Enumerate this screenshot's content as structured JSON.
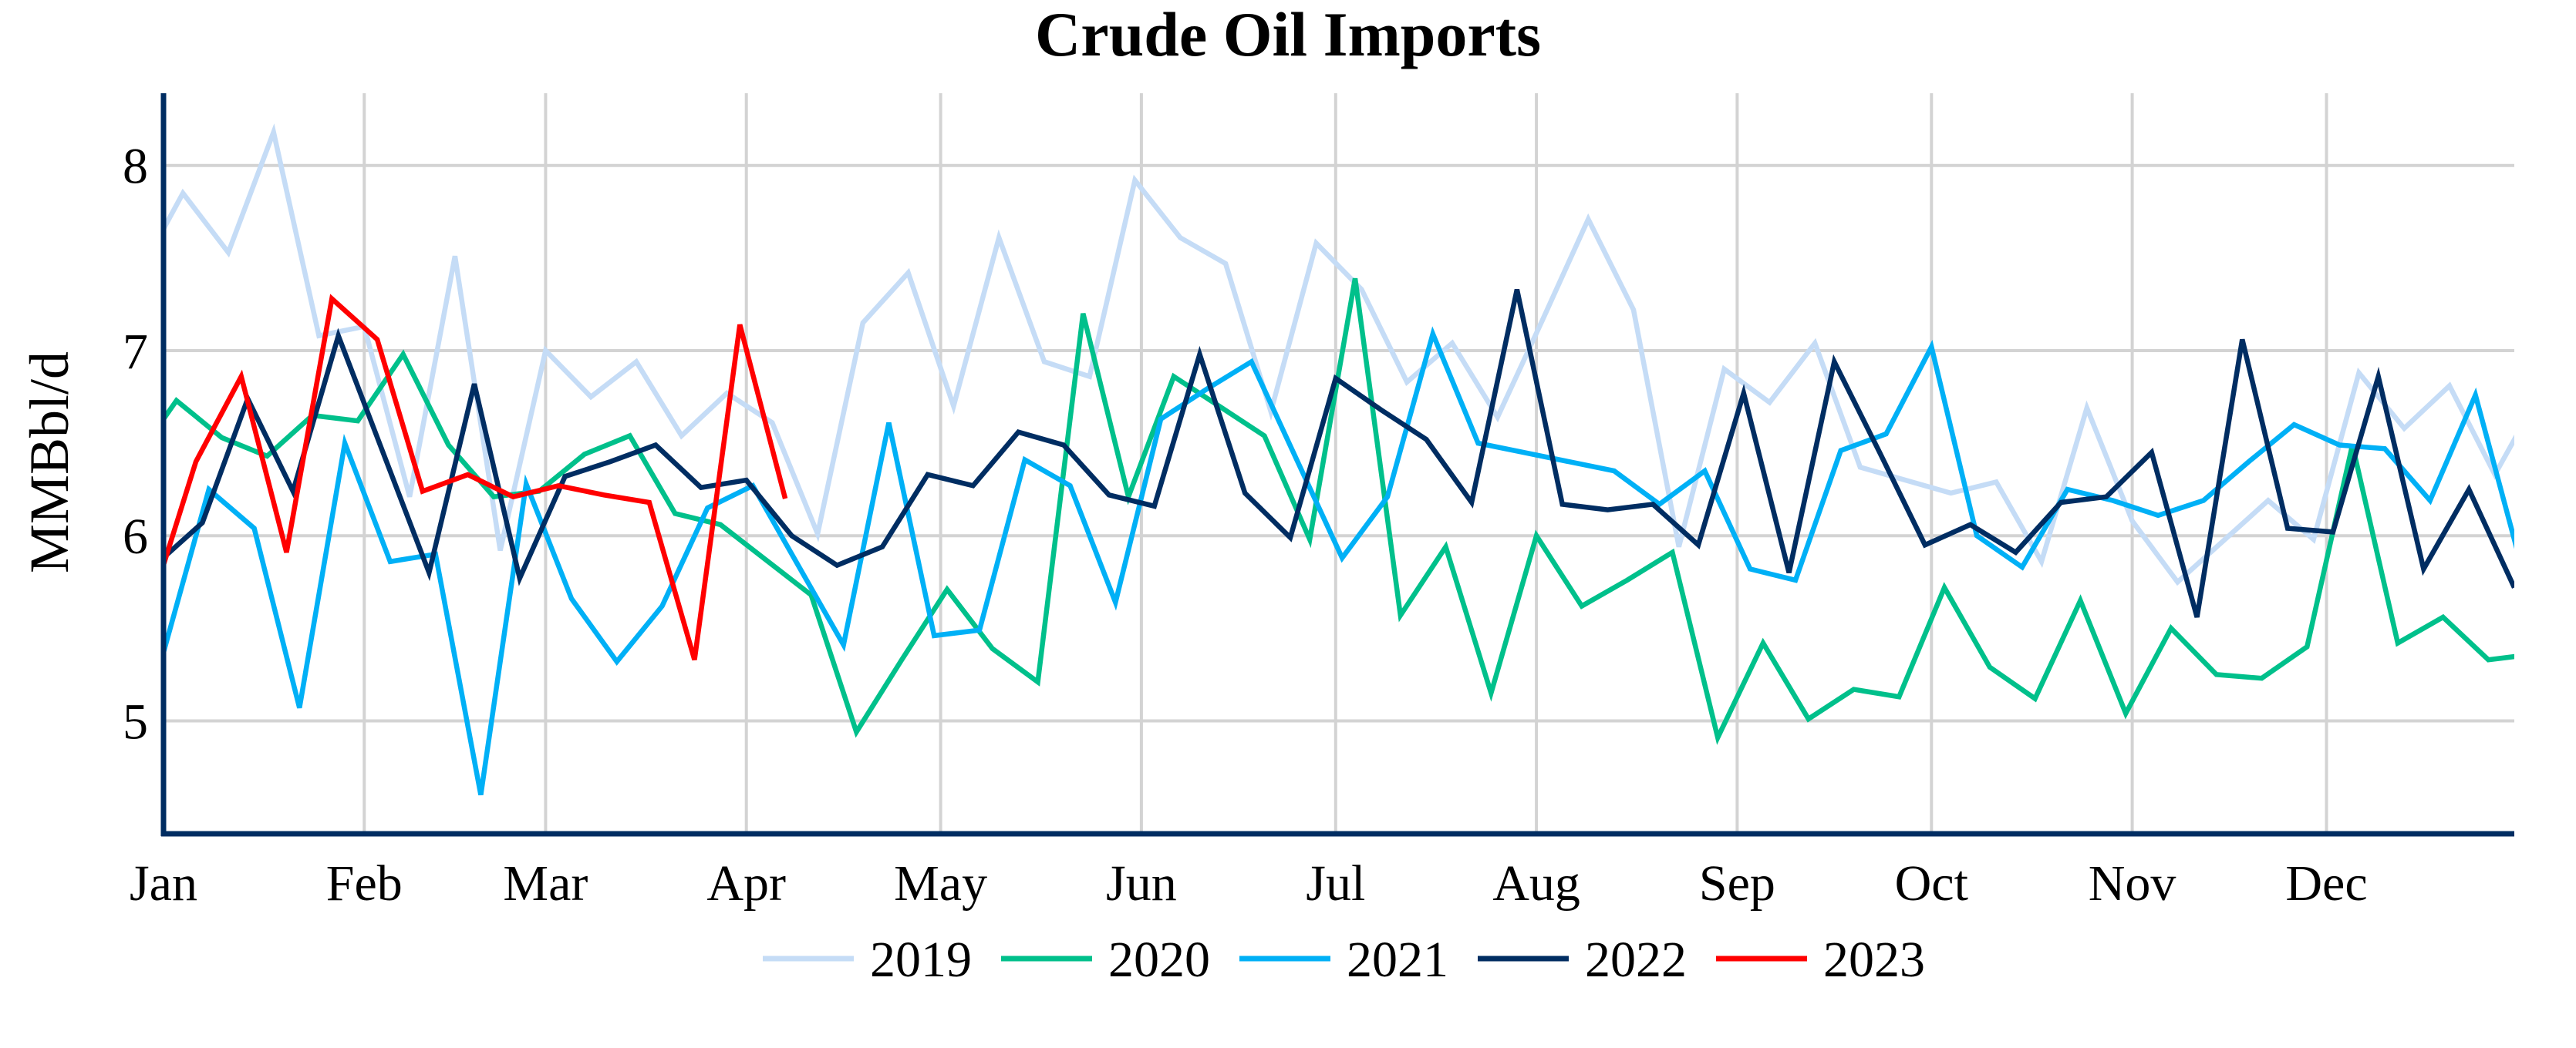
{
  "chart_data": {
    "type": "line",
    "title": "Crude Oil Imports",
    "xlabel": "",
    "ylabel": "MMBbl/d",
    "xlim": [
      "01-01",
      "12-30"
    ],
    "ylim": [
      4.39,
      8.39
    ],
    "yticks": [
      {
        "value": 5,
        "label": "5"
      },
      {
        "value": 6,
        "label": "6"
      },
      {
        "value": 7,
        "label": "7"
      },
      {
        "value": 8,
        "label": "8"
      }
    ],
    "xticks": [
      {
        "date": "01-01",
        "label": "Jan"
      },
      {
        "date": "02-01",
        "label": "Feb"
      },
      {
        "date": "03-01",
        "label": "Mar"
      },
      {
        "date": "04-01",
        "label": "Apr"
      },
      {
        "date": "05-01",
        "label": "May"
      },
      {
        "date": "06-01",
        "label": "Jun"
      },
      {
        "date": "07-01",
        "label": "Jul"
      },
      {
        "date": "08-01",
        "label": "Aug"
      },
      {
        "date": "09-01",
        "label": "Sep"
      },
      {
        "date": "10-01",
        "label": "Oct"
      },
      {
        "date": "11-01",
        "label": "Nov"
      },
      {
        "date": "12-01",
        "label": "Dec"
      }
    ],
    "grid": true,
    "legend_position": "bottom",
    "axis_color": "#002d62",
    "grid_color": "#d3d3d3",
    "series": [
      {
        "name": "2019",
        "color": "#c5dcf6",
        "dates": [
          "2018-12-28",
          "2019-01-04",
          "2019-01-11",
          "2019-01-18",
          "2019-01-25",
          "2019-02-01",
          "2019-02-08",
          "2019-02-15",
          "2019-02-22",
          "2019-03-01",
          "2019-03-08",
          "2019-03-15",
          "2019-03-22",
          "2019-03-29",
          "2019-04-05",
          "2019-04-12",
          "2019-04-19",
          "2019-04-26",
          "2019-05-03",
          "2019-05-10",
          "2019-05-17",
          "2019-05-24",
          "2019-05-31",
          "2019-06-07",
          "2019-06-14",
          "2019-06-21",
          "2019-06-28",
          "2019-07-05",
          "2019-07-12",
          "2019-07-19",
          "2019-07-26",
          "2019-08-02",
          "2019-08-09",
          "2019-08-16",
          "2019-08-23",
          "2019-08-30",
          "2019-09-06",
          "2019-09-13",
          "2019-09-20",
          "2019-09-27",
          "2019-10-04",
          "2019-10-11",
          "2019-10-18",
          "2019-10-25",
          "2019-11-01",
          "2019-11-08",
          "2019-11-15",
          "2019-11-22",
          "2019-11-29",
          "2019-12-06",
          "2019-12-13",
          "2019-12-20",
          "2019-12-27",
          "2020-01-03"
        ],
        "values": [
          7.4,
          7.85,
          7.53,
          8.18,
          7.08,
          7.13,
          6.21,
          7.51,
          5.92,
          7.0,
          6.75,
          6.94,
          6.54,
          6.77,
          6.61,
          6.01,
          7.15,
          7.42,
          6.7,
          7.61,
          6.94,
          6.86,
          7.92,
          7.61,
          7.47,
          6.67,
          7.58,
          7.33,
          6.83,
          7.04,
          6.64,
          7.17,
          7.71,
          7.22,
          5.94,
          6.9,
          6.72,
          7.04,
          6.37,
          6.3,
          6.23,
          6.29,
          5.86,
          6.69,
          6.08,
          5.75,
          5.97,
          6.19,
          5.98,
          6.88,
          6.58,
          6.81,
          6.33,
          6.77
        ]
      },
      {
        "name": "2020",
        "color": "#00c08b",
        "dates": [
          "2019-12-27",
          "2020-01-03",
          "2020-01-10",
          "2020-01-17",
          "2020-01-24",
          "2020-01-31",
          "2020-02-07",
          "2020-02-14",
          "2020-02-21",
          "2020-02-28",
          "2020-03-06",
          "2020-03-13",
          "2020-03-20",
          "2020-03-27",
          "2020-04-03",
          "2020-04-10",
          "2020-04-17",
          "2020-04-24",
          "2020-05-01",
          "2020-05-08",
          "2020-05-15",
          "2020-05-22",
          "2020-05-29",
          "2020-06-05",
          "2020-06-12",
          "2020-06-19",
          "2020-06-26",
          "2020-07-03",
          "2020-07-10",
          "2020-07-17",
          "2020-07-24",
          "2020-07-31",
          "2020-08-07",
          "2020-08-14",
          "2020-08-21",
          "2020-08-28",
          "2020-09-04",
          "2020-09-11",
          "2020-09-18",
          "2020-09-25",
          "2020-10-02",
          "2020-10-09",
          "2020-10-16",
          "2020-10-23",
          "2020-10-30",
          "2020-11-06",
          "2020-11-13",
          "2020-11-20",
          "2020-11-27",
          "2020-12-04",
          "2020-12-11",
          "2020-12-18",
          "2020-12-25",
          "2021-01-01"
        ],
        "values": [
          6.38,
          6.73,
          6.53,
          6.43,
          6.65,
          6.62,
          6.98,
          6.49,
          6.21,
          6.24,
          6.44,
          6.54,
          6.12,
          6.06,
          5.87,
          5.68,
          4.94,
          5.33,
          5.71,
          5.39,
          5.21,
          7.2,
          6.21,
          6.86,
          6.7,
          6.54,
          5.98,
          7.39,
          5.57,
          5.94,
          5.15,
          6.0,
          5.62,
          5.76,
          5.91,
          4.91,
          5.42,
          5.01,
          5.17,
          5.13,
          5.72,
          5.29,
          5.12,
          5.65,
          5.04,
          5.5,
          5.25,
          5.23,
          5.4,
          6.49,
          5.42,
          5.56,
          5.33,
          5.36
        ]
      },
      {
        "name": "2021",
        "color": "#00b0f6",
        "dates": [
          "2021-01-01",
          "2021-01-08",
          "2021-01-15",
          "2021-01-22",
          "2021-01-29",
          "2021-02-05",
          "2021-02-12",
          "2021-02-19",
          "2021-02-26",
          "2021-03-05",
          "2021-03-12",
          "2021-03-19",
          "2021-03-26",
          "2021-04-02",
          "2021-04-09",
          "2021-04-16",
          "2021-04-23",
          "2021-04-30",
          "2021-05-07",
          "2021-05-14",
          "2021-05-21",
          "2021-05-28",
          "2021-06-04",
          "2021-06-11",
          "2021-06-18",
          "2021-06-25",
          "2021-07-02",
          "2021-07-09",
          "2021-07-16",
          "2021-07-23",
          "2021-07-30",
          "2021-08-06",
          "2021-08-13",
          "2021-08-20",
          "2021-08-27",
          "2021-09-03",
          "2021-09-10",
          "2021-09-17",
          "2021-09-24",
          "2021-10-01",
          "2021-10-08",
          "2021-10-15",
          "2021-10-22",
          "2021-10-29",
          "2021-11-05",
          "2021-11-12",
          "2021-11-19",
          "2021-11-26",
          "2021-12-03",
          "2021-12-10",
          "2021-12-17",
          "2021-12-24",
          "2021-12-31"
        ],
        "values": [
          5.37,
          6.25,
          6.04,
          5.07,
          6.5,
          5.86,
          5.9,
          4.6,
          6.28,
          5.66,
          5.32,
          5.62,
          6.15,
          6.27,
          5.84,
          5.41,
          6.61,
          5.46,
          5.49,
          6.41,
          6.27,
          5.64,
          6.63,
          6.79,
          6.94,
          6.41,
          5.88,
          6.21,
          7.09,
          6.5,
          6.45,
          6.4,
          6.35,
          6.17,
          6.35,
          5.82,
          5.76,
          6.46,
          6.55,
          7.02,
          6.0,
          5.83,
          6.25,
          6.19,
          6.11,
          6.19,
          6.4,
          6.6,
          6.49,
          6.47,
          6.19,
          6.76,
          5.85
        ]
      },
      {
        "name": "2022",
        "color": "#002d62",
        "dates": [
          "2021-12-31",
          "2022-01-07",
          "2022-01-14",
          "2022-01-21",
          "2022-01-28",
          "2022-02-04",
          "2022-02-11",
          "2022-02-18",
          "2022-02-25",
          "2022-03-04",
          "2022-03-11",
          "2022-03-18",
          "2022-03-25",
          "2022-04-01",
          "2022-04-08",
          "2022-04-15",
          "2022-04-22",
          "2022-04-29",
          "2022-05-06",
          "2022-05-13",
          "2022-05-20",
          "2022-05-27",
          "2022-06-03",
          "2022-06-10",
          "2022-06-17",
          "2022-06-24",
          "2022-07-01",
          "2022-07-08",
          "2022-07-15",
          "2022-07-22",
          "2022-07-29",
          "2022-08-05",
          "2022-08-12",
          "2022-08-19",
          "2022-08-26",
          "2022-09-02",
          "2022-09-09",
          "2022-09-16",
          "2022-09-23",
          "2022-09-30",
          "2022-10-07",
          "2022-10-14",
          "2022-10-21",
          "2022-10-28",
          "2022-11-04",
          "2022-11-11",
          "2022-11-18",
          "2022-11-25",
          "2022-12-02",
          "2022-12-09",
          "2022-12-16",
          "2022-12-23",
          "2022-12-30"
        ],
        "values": [
          5.85,
          6.07,
          6.74,
          6.24,
          7.08,
          6.44,
          5.8,
          6.82,
          5.77,
          6.32,
          6.4,
          6.49,
          6.26,
          6.3,
          6.0,
          5.84,
          5.94,
          6.33,
          6.27,
          6.56,
          6.49,
          6.22,
          6.16,
          6.98,
          6.23,
          5.99,
          6.85,
          6.68,
          6.52,
          6.18,
          7.33,
          6.17,
          6.14,
          6.17,
          5.95,
          6.77,
          5.8,
          6.94,
          6.45,
          5.95,
          6.06,
          5.91,
          6.18,
          6.21,
          6.45,
          5.56,
          7.06,
          6.04,
          6.02,
          6.86,
          5.82,
          6.25,
          5.72
        ]
      },
      {
        "name": "2023",
        "color": "#ff0000",
        "dates": [
          "2022-12-30",
          "2023-01-06",
          "2023-01-13",
          "2023-01-20",
          "2023-01-27",
          "2023-02-03",
          "2023-02-10",
          "2023-02-17",
          "2023-02-24",
          "2023-03-03",
          "2023-03-10",
          "2023-03-17",
          "2023-03-24",
          "2023-03-31",
          "2023-04-07"
        ],
        "values": [
          5.62,
          6.4,
          6.86,
          5.91,
          7.28,
          7.06,
          6.24,
          6.33,
          6.21,
          6.27,
          6.22,
          6.18,
          5.33,
          7.14,
          6.2
        ]
      }
    ]
  }
}
